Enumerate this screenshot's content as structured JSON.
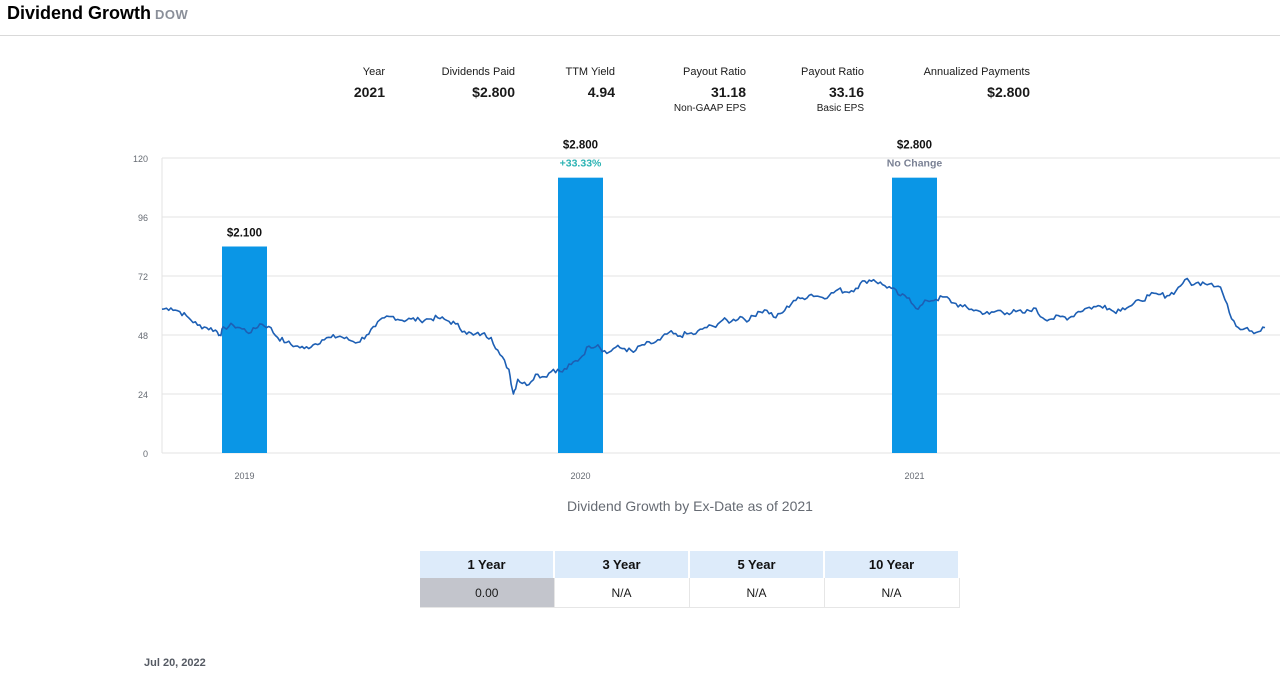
{
  "header": {
    "title": "Dividend Growth",
    "ticker": "DOW"
  },
  "stats": [
    {
      "label": "Year",
      "value": "2021",
      "sub": ""
    },
    {
      "label": "Dividends Paid",
      "value": "$2.800",
      "sub": ""
    },
    {
      "label": "TTM Yield",
      "value": "4.94",
      "sub": ""
    },
    {
      "label": "Payout Ratio",
      "value": "31.18",
      "sub": "Non-GAAP EPS"
    },
    {
      "label": "Payout Ratio",
      "value": "33.16",
      "sub": "Basic EPS"
    },
    {
      "label": "Annualized Payments",
      "value": "$2.800",
      "sub": ""
    }
  ],
  "chart_data": {
    "type": "bar",
    "categories": [
      "2019",
      "2020",
      "2021"
    ],
    "values": [
      2.1,
      2.8,
      2.8
    ],
    "value_labels": [
      "$2.100",
      "$2.800",
      "$2.800"
    ],
    "change_labels": [
      "",
      "+33.33%",
      "No Change"
    ],
    "ylim": [
      0,
      120
    ],
    "y_ticks": [
      0,
      24,
      48,
      72,
      96,
      120
    ],
    "grid": true,
    "colors": {
      "bar": "#0a96e6",
      "line": "#1d5fb4",
      "positive": "#2bb3b3",
      "neutral": "#7a8194"
    },
    "price_series": {
      "type": "line",
      "keypoints": [
        [
          0,
          58.5
        ],
        [
          2,
          59
        ],
        [
          4,
          57.5
        ],
        [
          6,
          55
        ],
        [
          8,
          52
        ],
        [
          10,
          51
        ],
        [
          12,
          50
        ],
        [
          13,
          48
        ],
        [
          14,
          51
        ],
        [
          16,
          52
        ],
        [
          18,
          50.5
        ],
        [
          20,
          49
        ],
        [
          22,
          52.5
        ],
        [
          24,
          51.5
        ],
        [
          26,
          47
        ],
        [
          28,
          45
        ],
        [
          30,
          43.5
        ],
        [
          32,
          42.5
        ],
        [
          34,
          44
        ],
        [
          36,
          46
        ],
        [
          38,
          47
        ],
        [
          40,
          47.5
        ],
        [
          42,
          46
        ],
        [
          44,
          45
        ],
        [
          46,
          48
        ],
        [
          48,
          51.5
        ],
        [
          50,
          55
        ],
        [
          52,
          55.5
        ],
        [
          54,
          54
        ],
        [
          56,
          54.5
        ],
        [
          58,
          54
        ],
        [
          60,
          54.5
        ],
        [
          62,
          55
        ],
        [
          64,
          54
        ],
        [
          66,
          52.5
        ],
        [
          68,
          49.5
        ],
        [
          70,
          48
        ],
        [
          72,
          48.5
        ],
        [
          74,
          47
        ],
        [
          76,
          40
        ],
        [
          78,
          34
        ],
        [
          79,
          24
        ],
        [
          80,
          30
        ],
        [
          82,
          27.5
        ],
        [
          84,
          32
        ],
        [
          86,
          31
        ],
        [
          88,
          34
        ],
        [
          90,
          33
        ],
        [
          92,
          36
        ],
        [
          94,
          38.5
        ],
        [
          96,
          43.5
        ],
        [
          98,
          44
        ],
        [
          100,
          40.5
        ],
        [
          102,
          43
        ],
        [
          104,
          42.5
        ],
        [
          106,
          41
        ],
        [
          108,
          44
        ],
        [
          110,
          44.5
        ],
        [
          112,
          46
        ],
        [
          114,
          49
        ],
        [
          116,
          47.5
        ],
        [
          118,
          48.5
        ],
        [
          120,
          48.5
        ],
        [
          122,
          51
        ],
        [
          124,
          51.5
        ],
        [
          126,
          54
        ],
        [
          128,
          53.5
        ],
        [
          130,
          55.5
        ],
        [
          132,
          54
        ],
        [
          134,
          57.5
        ],
        [
          136,
          58
        ],
        [
          138,
          55
        ],
        [
          140,
          58
        ],
        [
          142,
          62
        ],
        [
          144,
          63
        ],
        [
          146,
          64.5
        ],
        [
          148,
          63.5
        ],
        [
          150,
          64
        ],
        [
          152,
          66.5
        ],
        [
          154,
          65.5
        ],
        [
          156,
          67
        ],
        [
          158,
          70
        ],
        [
          160,
          70.5
        ],
        [
          162,
          68.5
        ],
        [
          164,
          67
        ],
        [
          166,
          64
        ],
        [
          168,
          63
        ],
        [
          170,
          58.5
        ],
        [
          172,
          62
        ],
        [
          174,
          62.5
        ],
        [
          176,
          63.5
        ],
        [
          178,
          61
        ],
        [
          180,
          59.5
        ],
        [
          182,
          58.5
        ],
        [
          184,
          57.5
        ],
        [
          186,
          56.5
        ],
        [
          188,
          58
        ],
        [
          190,
          57
        ],
        [
          192,
          57.5
        ],
        [
          194,
          57
        ],
        [
          196,
          59
        ],
        [
          198,
          55
        ],
        [
          200,
          54.5
        ],
        [
          202,
          55.5
        ],
        [
          204,
          55
        ],
        [
          206,
          57.5
        ],
        [
          208,
          59
        ],
        [
          210,
          59.5
        ],
        [
          212,
          60
        ],
        [
          214,
          57.5
        ],
        [
          216,
          59
        ],
        [
          218,
          60
        ],
        [
          220,
          62
        ],
        [
          222,
          64
        ],
        [
          224,
          64.5
        ],
        [
          226,
          64
        ],
        [
          228,
          66
        ],
        [
          230,
          70.5
        ],
        [
          232,
          68.5
        ],
        [
          234,
          69.5
        ],
        [
          236,
          69
        ],
        [
          238,
          67.5
        ],
        [
          240,
          57
        ],
        [
          242,
          51
        ],
        [
          244,
          51
        ],
        [
          246,
          49
        ],
        [
          248,
          51
        ]
      ]
    }
  },
  "caption": "Dividend Growth by Ex-Date as of 2021",
  "growth_table": {
    "headers": [
      "1 Year",
      "3 Year",
      "5 Year",
      "10 Year"
    ],
    "values": [
      "0.00",
      "N/A",
      "N/A",
      "N/A"
    ]
  },
  "as_of_date": "Jul 20, 2022"
}
